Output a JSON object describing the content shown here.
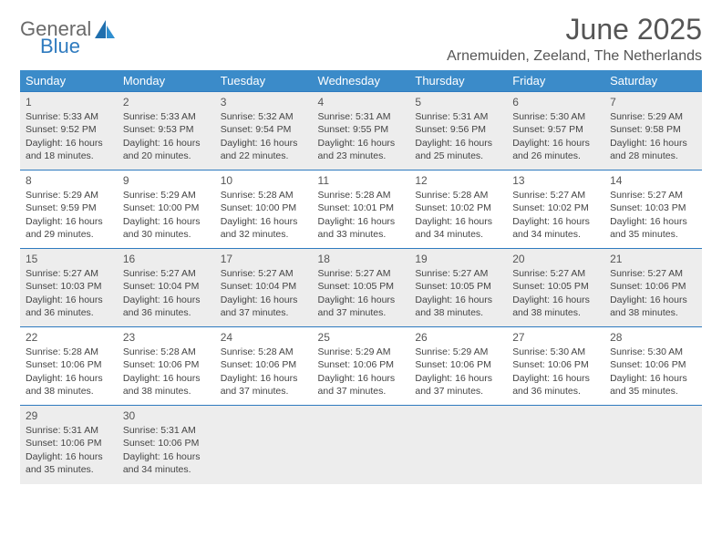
{
  "brand": {
    "line1": "General",
    "line2": "Blue"
  },
  "title": "June 2025",
  "location": "Arnemuiden, Zeeland, The Netherlands",
  "colors": {
    "header_bg": "#3b8bc9",
    "header_text": "#ffffff",
    "rule": "#2f7bbf",
    "shade": "#ededed",
    "text": "#444444",
    "title": "#555555"
  },
  "fonts": {
    "title_size": 32,
    "subtitle_size": 16,
    "header_size": 13,
    "body_size": 10.5
  },
  "day_headers": [
    "Sunday",
    "Monday",
    "Tuesday",
    "Wednesday",
    "Thursday",
    "Friday",
    "Saturday"
  ],
  "weeks": [
    {
      "shade": true,
      "days": [
        {
          "n": "1",
          "sunrise": "5:33 AM",
          "sunset": "9:52 PM",
          "dl": "16 hours and 18 minutes."
        },
        {
          "n": "2",
          "sunrise": "5:33 AM",
          "sunset": "9:53 PM",
          "dl": "16 hours and 20 minutes."
        },
        {
          "n": "3",
          "sunrise": "5:32 AM",
          "sunset": "9:54 PM",
          "dl": "16 hours and 22 minutes."
        },
        {
          "n": "4",
          "sunrise": "5:31 AM",
          "sunset": "9:55 PM",
          "dl": "16 hours and 23 minutes."
        },
        {
          "n": "5",
          "sunrise": "5:31 AM",
          "sunset": "9:56 PM",
          "dl": "16 hours and 25 minutes."
        },
        {
          "n": "6",
          "sunrise": "5:30 AM",
          "sunset": "9:57 PM",
          "dl": "16 hours and 26 minutes."
        },
        {
          "n": "7",
          "sunrise": "5:29 AM",
          "sunset": "9:58 PM",
          "dl": "16 hours and 28 minutes."
        }
      ]
    },
    {
      "shade": false,
      "days": [
        {
          "n": "8",
          "sunrise": "5:29 AM",
          "sunset": "9:59 PM",
          "dl": "16 hours and 29 minutes."
        },
        {
          "n": "9",
          "sunrise": "5:29 AM",
          "sunset": "10:00 PM",
          "dl": "16 hours and 30 minutes."
        },
        {
          "n": "10",
          "sunrise": "5:28 AM",
          "sunset": "10:00 PM",
          "dl": "16 hours and 32 minutes."
        },
        {
          "n": "11",
          "sunrise": "5:28 AM",
          "sunset": "10:01 PM",
          "dl": "16 hours and 33 minutes."
        },
        {
          "n": "12",
          "sunrise": "5:28 AM",
          "sunset": "10:02 PM",
          "dl": "16 hours and 34 minutes."
        },
        {
          "n": "13",
          "sunrise": "5:27 AM",
          "sunset": "10:02 PM",
          "dl": "16 hours and 34 minutes."
        },
        {
          "n": "14",
          "sunrise": "5:27 AM",
          "sunset": "10:03 PM",
          "dl": "16 hours and 35 minutes."
        }
      ]
    },
    {
      "shade": true,
      "days": [
        {
          "n": "15",
          "sunrise": "5:27 AM",
          "sunset": "10:03 PM",
          "dl": "16 hours and 36 minutes."
        },
        {
          "n": "16",
          "sunrise": "5:27 AM",
          "sunset": "10:04 PM",
          "dl": "16 hours and 36 minutes."
        },
        {
          "n": "17",
          "sunrise": "5:27 AM",
          "sunset": "10:04 PM",
          "dl": "16 hours and 37 minutes."
        },
        {
          "n": "18",
          "sunrise": "5:27 AM",
          "sunset": "10:05 PM",
          "dl": "16 hours and 37 minutes."
        },
        {
          "n": "19",
          "sunrise": "5:27 AM",
          "sunset": "10:05 PM",
          "dl": "16 hours and 38 minutes."
        },
        {
          "n": "20",
          "sunrise": "5:27 AM",
          "sunset": "10:05 PM",
          "dl": "16 hours and 38 minutes."
        },
        {
          "n": "21",
          "sunrise": "5:27 AM",
          "sunset": "10:06 PM",
          "dl": "16 hours and 38 minutes."
        }
      ]
    },
    {
      "shade": false,
      "days": [
        {
          "n": "22",
          "sunrise": "5:28 AM",
          "sunset": "10:06 PM",
          "dl": "16 hours and 38 minutes."
        },
        {
          "n": "23",
          "sunrise": "5:28 AM",
          "sunset": "10:06 PM",
          "dl": "16 hours and 38 minutes."
        },
        {
          "n": "24",
          "sunrise": "5:28 AM",
          "sunset": "10:06 PM",
          "dl": "16 hours and 37 minutes."
        },
        {
          "n": "25",
          "sunrise": "5:29 AM",
          "sunset": "10:06 PM",
          "dl": "16 hours and 37 minutes."
        },
        {
          "n": "26",
          "sunrise": "5:29 AM",
          "sunset": "10:06 PM",
          "dl": "16 hours and 37 minutes."
        },
        {
          "n": "27",
          "sunrise": "5:30 AM",
          "sunset": "10:06 PM",
          "dl": "16 hours and 36 minutes."
        },
        {
          "n": "28",
          "sunrise": "5:30 AM",
          "sunset": "10:06 PM",
          "dl": "16 hours and 35 minutes."
        }
      ]
    },
    {
      "shade": true,
      "days": [
        {
          "n": "29",
          "sunrise": "5:31 AM",
          "sunset": "10:06 PM",
          "dl": "16 hours and 35 minutes."
        },
        {
          "n": "30",
          "sunrise": "5:31 AM",
          "sunset": "10:06 PM",
          "dl": "16 hours and 34 minutes."
        },
        null,
        null,
        null,
        null,
        null
      ]
    }
  ],
  "labels": {
    "sunrise": "Sunrise:",
    "sunset": "Sunset:",
    "daylight": "Daylight:"
  }
}
